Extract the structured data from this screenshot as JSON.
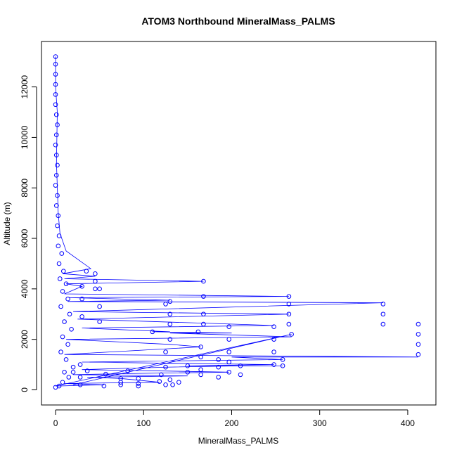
{
  "chart_data": {
    "type": "scatter",
    "title": "ATOM3 Northbound MineralMass_PALMS",
    "xlabel": "MineralMass_PALMS",
    "ylabel": "Altitude (m)",
    "xlim": [
      -16,
      432
    ],
    "ylim": [
      -600,
      13800
    ],
    "xticks": [
      0,
      100,
      200,
      300,
      400
    ],
    "xtick_labels": [
      "0",
      "100",
      "200",
      "300",
      "400"
    ],
    "yticks": [
      0,
      2000,
      4000,
      6000,
      8000,
      10000,
      12000
    ],
    "ytick_labels": [
      "0",
      "2000",
      "4000",
      "6000",
      "8000",
      "10000",
      "12000"
    ],
    "grid": false,
    "legend": "none",
    "colors": {
      "series": "#0000ff",
      "axis": "#000000"
    },
    "series": [
      {
        "points": [
          [
            0,
            13200
          ],
          [
            0,
            12900
          ],
          [
            0,
            12500
          ],
          [
            0,
            12100
          ],
          [
            0,
            11700
          ],
          [
            0,
            11300
          ],
          [
            1,
            10900
          ],
          [
            2,
            10500
          ],
          [
            1,
            10100
          ],
          [
            0,
            9700
          ],
          [
            1,
            9300
          ],
          [
            2,
            8900
          ],
          [
            1,
            8500
          ],
          [
            0,
            8100
          ],
          [
            2,
            7700
          ],
          [
            1,
            7300
          ],
          [
            3,
            6900
          ],
          [
            2,
            6500
          ],
          [
            4,
            6100
          ],
          [
            3,
            5700
          ],
          [
            7,
            5400
          ],
          [
            4,
            5000
          ],
          [
            9,
            4700
          ],
          [
            5,
            4400
          ],
          [
            12,
            4200
          ],
          [
            8,
            3900
          ],
          [
            14,
            3600
          ],
          [
            6,
            3300
          ],
          [
            16,
            3000
          ],
          [
            10,
            2700
          ],
          [
            18,
            2400
          ],
          [
            8,
            2100
          ],
          [
            14,
            1800
          ],
          [
            6,
            1500
          ],
          [
            12,
            1200
          ],
          [
            20,
            900
          ],
          [
            10,
            700
          ],
          [
            15,
            500
          ],
          [
            8,
            300
          ],
          [
            4,
            150
          ],
          [
            0,
            100
          ],
          [
            45,
            4600
          ],
          [
            45,
            4300
          ],
          [
            45,
            4000
          ],
          [
            30,
            4100
          ],
          [
            30,
            3600
          ],
          [
            30,
            2900
          ],
          [
            50,
            4000
          ],
          [
            50,
            3300
          ],
          [
            50,
            2700
          ],
          [
            35,
            4700
          ],
          [
            130,
            3500
          ],
          [
            130,
            3000
          ],
          [
            130,
            2600
          ],
          [
            130,
            2000
          ],
          [
            125,
            3400
          ],
          [
            125,
            1500
          ],
          [
            125,
            900
          ],
          [
            130,
            400
          ],
          [
            125,
            200
          ],
          [
            168,
            4300
          ],
          [
            168,
            3700
          ],
          [
            168,
            3000
          ],
          [
            168,
            2600
          ],
          [
            165,
            1700
          ],
          [
            165,
            1300
          ],
          [
            165,
            800
          ],
          [
            165,
            600
          ],
          [
            197,
            2500
          ],
          [
            197,
            2000
          ],
          [
            197,
            1500
          ],
          [
            197,
            1100
          ],
          [
            197,
            700
          ],
          [
            185,
            1200
          ],
          [
            185,
            900
          ],
          [
            185,
            500
          ],
          [
            248,
            2500
          ],
          [
            248,
            2000
          ],
          [
            248,
            1500
          ],
          [
            248,
            1000
          ],
          [
            265,
            3700
          ],
          [
            265,
            3400
          ],
          [
            265,
            3000
          ],
          [
            265,
            2600
          ],
          [
            268,
            2200
          ],
          [
            372,
            3400
          ],
          [
            372,
            3000
          ],
          [
            372,
            2600
          ],
          [
            412,
            2600
          ],
          [
            412,
            2200
          ],
          [
            412,
            1800
          ],
          [
            412,
            1400
          ],
          [
            110,
            2300
          ],
          [
            162,
            2300
          ],
          [
            210,
            950
          ],
          [
            258,
            950
          ],
          [
            258,
            1200
          ],
          [
            36,
            750
          ],
          [
            57,
            620
          ],
          [
            82,
            750
          ],
          [
            94,
            450
          ],
          [
            94,
            250
          ],
          [
            94,
            150
          ],
          [
            74,
            450
          ],
          [
            74,
            300
          ],
          [
            74,
            200
          ],
          [
            55,
            150
          ],
          [
            118,
            330
          ],
          [
            133,
            200
          ],
          [
            140,
            300
          ],
          [
            120,
            600
          ],
          [
            20,
            700
          ],
          [
            28,
            1000
          ],
          [
            28,
            500
          ],
          [
            28,
            200
          ],
          [
            150,
            700
          ],
          [
            150,
            950
          ],
          [
            210,
            600
          ]
        ],
        "path": [
          [
            0,
            13200
          ],
          [
            0,
            12000
          ],
          [
            2,
            11000
          ],
          [
            1,
            9000
          ],
          [
            3,
            7000
          ],
          [
            5,
            6200
          ],
          [
            12,
            5500
          ],
          [
            40,
            4800
          ],
          [
            8,
            4600
          ],
          [
            45,
            4500
          ],
          [
            10,
            4400
          ],
          [
            168,
            4300
          ],
          [
            12,
            4200
          ],
          [
            30,
            4100
          ],
          [
            10,
            3800
          ],
          [
            265,
            3700
          ],
          [
            15,
            3650
          ],
          [
            130,
            3550
          ],
          [
            14,
            3500
          ],
          [
            372,
            3450
          ],
          [
            20,
            3100
          ],
          [
            265,
            3000
          ],
          [
            25,
            2800
          ],
          [
            248,
            2550
          ],
          [
            30,
            2450
          ],
          [
            130,
            2300
          ],
          [
            110,
            2300
          ],
          [
            200,
            2250
          ],
          [
            130,
            2250
          ],
          [
            268,
            2100
          ],
          [
            12,
            2000
          ],
          [
            130,
            1800
          ],
          [
            165,
            1700
          ],
          [
            10,
            1400
          ],
          [
            412,
            1300
          ],
          [
            200,
            1300
          ],
          [
            258,
            1200
          ],
          [
            30,
            1100
          ],
          [
            248,
            1000
          ],
          [
            150,
            950
          ],
          [
            258,
            950
          ],
          [
            210,
            950
          ],
          [
            130,
            900
          ],
          [
            30,
            800
          ],
          [
            197,
            700
          ],
          [
            94,
            650
          ],
          [
            20,
            600
          ],
          [
            150,
            550
          ],
          [
            36,
            500
          ],
          [
            74,
            450
          ],
          [
            118,
            300
          ],
          [
            10,
            250
          ],
          [
            55,
            200
          ],
          [
            0,
            150
          ],
          [
            268,
            2200
          ],
          [
            20,
            200
          ]
        ]
      }
    ]
  }
}
